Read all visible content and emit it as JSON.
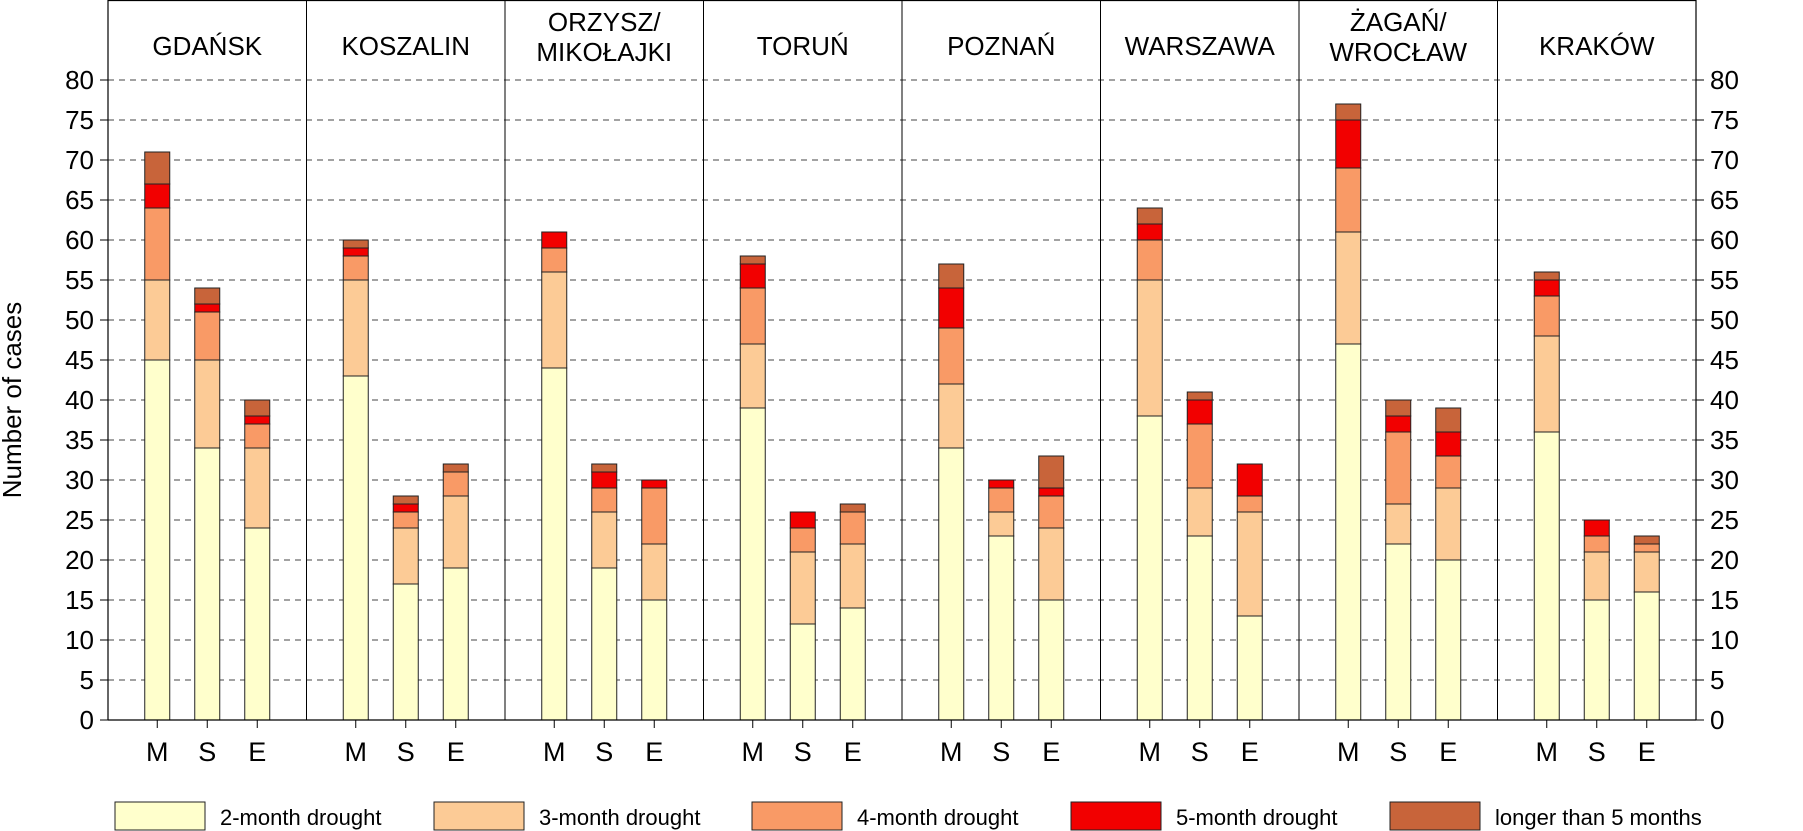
{
  "chart_data": {
    "type": "bar",
    "stacked": true,
    "ylabel": "Number of cases",
    "ylim": [
      0,
      80
    ],
    "yticks": [
      0,
      5,
      10,
      15,
      20,
      25,
      30,
      35,
      40,
      45,
      50,
      55,
      60,
      65,
      70,
      75,
      80
    ],
    "grid": "horizontal dashed",
    "legend_position": "bottom",
    "sub_categories": [
      "M",
      "S",
      "E"
    ],
    "series": [
      {
        "name": "2-month drought",
        "color": "#FFFFCC"
      },
      {
        "name": "3-month drought",
        "color": "#FCCB96"
      },
      {
        "name": "4-month drought",
        "color": "#F99A66"
      },
      {
        "name": "5-month drought",
        "color": "#F20000"
      },
      {
        "name": "longer than 5 months",
        "color": "#C8643A"
      }
    ],
    "groups": [
      {
        "name": [
          "GDAŃSK"
        ],
        "bars": [
          {
            "label": "M",
            "values": [
              45,
              10,
              9,
              3,
              4
            ]
          },
          {
            "label": "S",
            "values": [
              34,
              11,
              6,
              1,
              2
            ]
          },
          {
            "label": "E",
            "values": [
              24,
              10,
              3,
              1,
              2
            ]
          }
        ]
      },
      {
        "name": [
          "KOSZALIN"
        ],
        "bars": [
          {
            "label": "M",
            "values": [
              43,
              12,
              3,
              1,
              1
            ]
          },
          {
            "label": "S",
            "values": [
              17,
              7,
              2,
              1,
              1
            ]
          },
          {
            "label": "E",
            "values": [
              19,
              9,
              3,
              0,
              1
            ]
          }
        ]
      },
      {
        "name": [
          "ORZYSZ/",
          "MIKOŁAJKI"
        ],
        "bars": [
          {
            "label": "M",
            "values": [
              44,
              12,
              3,
              2,
              0
            ]
          },
          {
            "label": "S",
            "values": [
              19,
              7,
              3,
              2,
              1
            ]
          },
          {
            "label": "E",
            "values": [
              15,
              7,
              7,
              1,
              0
            ]
          }
        ]
      },
      {
        "name": [
          "TORUŃ"
        ],
        "bars": [
          {
            "label": "M",
            "values": [
              39,
              8,
              7,
              3,
              1
            ]
          },
          {
            "label": "S",
            "values": [
              12,
              9,
              3,
              2,
              0
            ]
          },
          {
            "label": "E",
            "values": [
              14,
              8,
              4,
              0,
              1
            ]
          }
        ]
      },
      {
        "name": [
          "POZNAŃ"
        ],
        "bars": [
          {
            "label": "M",
            "values": [
              34,
              8,
              7,
              5,
              3
            ]
          },
          {
            "label": "S",
            "values": [
              23,
              3,
              3,
              1,
              0
            ]
          },
          {
            "label": "E",
            "values": [
              15,
              9,
              4,
              1,
              4
            ]
          }
        ]
      },
      {
        "name": [
          "WARSZAWA"
        ],
        "bars": [
          {
            "label": "M",
            "values": [
              38,
              17,
              5,
              2,
              2
            ]
          },
          {
            "label": "S",
            "values": [
              23,
              6,
              8,
              3,
              1
            ]
          },
          {
            "label": "E",
            "values": [
              13,
              13,
              2,
              4,
              0
            ]
          }
        ]
      },
      {
        "name": [
          "ŻAGAŃ/",
          "WROCŁAW"
        ],
        "bars": [
          {
            "label": "M",
            "values": [
              47,
              14,
              8,
              6,
              2
            ]
          },
          {
            "label": "S",
            "values": [
              22,
              5,
              9,
              2,
              2
            ]
          },
          {
            "label": "E",
            "values": [
              20,
              9,
              4,
              3,
              3
            ]
          }
        ]
      },
      {
        "name": [
          "KRAKÓW"
        ],
        "bars": [
          {
            "label": "M",
            "values": [
              36,
              12,
              5,
              2,
              1
            ]
          },
          {
            "label": "S",
            "values": [
              15,
              6,
              2,
              2,
              0
            ]
          },
          {
            "label": "E",
            "values": [
              16,
              5,
              1,
              0,
              1
            ]
          }
        ]
      }
    ]
  }
}
